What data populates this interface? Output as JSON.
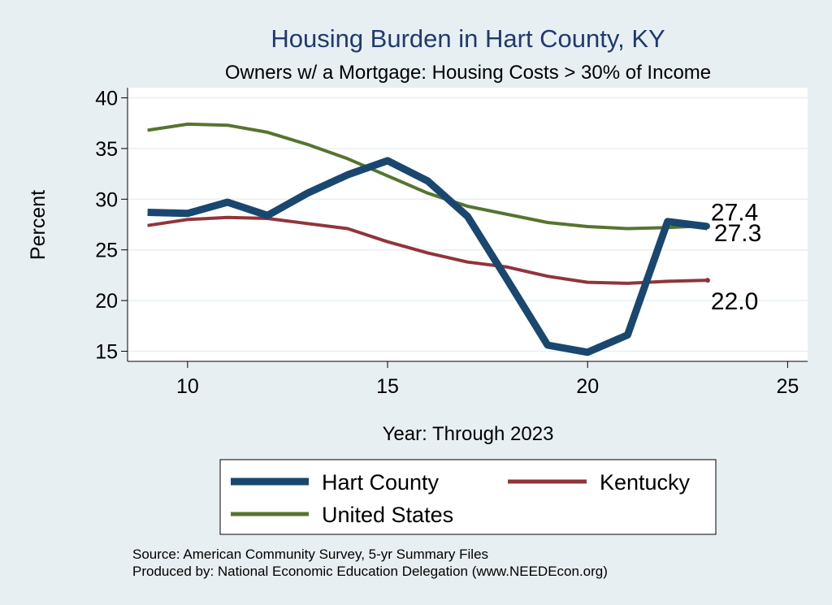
{
  "colors": {
    "background": "#e8eff2",
    "plot_background": "#ffffff",
    "title": "#1f3a6e",
    "hart_county": "#1a476f",
    "kentucky": "#90353b",
    "united_states": "#55752f",
    "grid": "#e8eff2"
  },
  "chart_data": {
    "type": "line",
    "title": "Housing Burden in Hart County, KY",
    "subtitle": "Owners w/ a Mortgage: Housing Costs > 30% of Income",
    "xlabel": "Year: Through 2023",
    "ylabel": "Percent",
    "xlim": [
      8.5,
      25.5
    ],
    "ylim": [
      14,
      41
    ],
    "xticks": [
      10,
      15,
      20,
      25
    ],
    "yticks": [
      15,
      20,
      25,
      30,
      35,
      40
    ],
    "grid": true,
    "legend_position": "bottom",
    "x": [
      9,
      10,
      11,
      12,
      13,
      14,
      15,
      16,
      17,
      18,
      19,
      20,
      21,
      22,
      23
    ],
    "series": [
      {
        "name": "Hart County",
        "color": "#1a476f",
        "values": [
          28.7,
          28.6,
          29.7,
          28.4,
          30.6,
          32.4,
          33.8,
          31.8,
          28.3,
          22.0,
          15.6,
          14.9,
          16.6,
          27.8,
          27.3
        ],
        "end_label": "27.3"
      },
      {
        "name": "Kentucky",
        "color": "#90353b",
        "values": [
          27.4,
          28.0,
          28.2,
          28.1,
          27.6,
          27.1,
          25.8,
          24.7,
          23.8,
          23.3,
          22.4,
          21.8,
          21.7,
          21.9,
          22.0
        ],
        "end_label": "22.0"
      },
      {
        "name": "United States",
        "color": "#55752f",
        "values": [
          36.8,
          37.4,
          37.3,
          36.6,
          35.4,
          34.0,
          32.3,
          30.6,
          29.3,
          28.5,
          27.7,
          27.3,
          27.1,
          27.2,
          27.4
        ],
        "end_label": "27.4"
      }
    ]
  },
  "source": "Source: American Community Survey, 5-yr Summary Files",
  "produced_by": "Produced by: National Economic Education Delegation (www.NEEDEcon.org)"
}
